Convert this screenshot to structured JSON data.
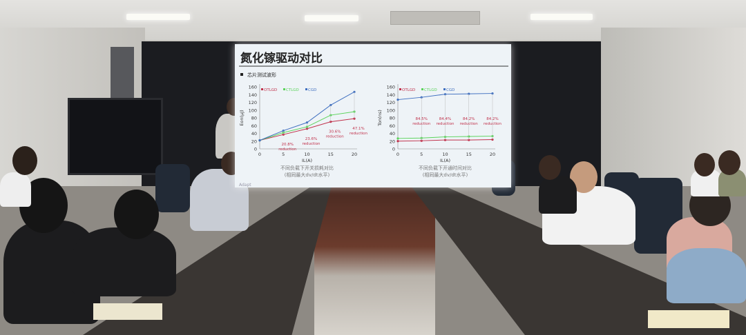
{
  "slide": {
    "title": "氮化镓驱动对比",
    "bullet": "芯片测试波形",
    "footer_left": "Adapt",
    "charts": [
      {
        "type": "line",
        "ylabel": "Eon(μJ)",
        "xlabel": "IL(A)",
        "x": [
          0,
          5,
          10,
          15,
          20
        ],
        "ylim": [
          0,
          160
        ],
        "yticks": [
          0,
          20,
          40,
          60,
          80,
          100,
          120,
          140,
          160
        ],
        "series": [
          {
            "name": "OTLGD",
            "color": "#c0304a",
            "values": [
              22,
              37,
              52,
              70,
              78
            ]
          },
          {
            "name": "CTLGD",
            "color": "#5ad35a",
            "values": [
              22,
              42,
              57,
              87,
              96
            ]
          },
          {
            "name": "CGD",
            "color": "#3f6fc0",
            "values": [
              22,
              47,
              68,
              113,
              147
            ]
          }
        ],
        "annotations": [
          "20.8%",
          "23.6%",
          "30.6%",
          "47.1%"
        ],
        "annotation_suffix": "reduction",
        "caption": "不同负载下开关损耗对比",
        "subcaption": "(相同最大dv/dt水平)"
      },
      {
        "type": "line",
        "ylabel": "Ton(ns)",
        "xlabel": "IL(A)",
        "x": [
          0,
          5,
          10,
          15,
          20
        ],
        "ylim": [
          0,
          160
        ],
        "yticks": [
          0,
          20,
          40,
          60,
          80,
          100,
          120,
          140,
          160
        ],
        "series": [
          {
            "name": "OTLGD",
            "color": "#c0304a",
            "values": [
              20,
              21,
              23,
              23,
              24
            ]
          },
          {
            "name": "CTLGD",
            "color": "#5ad35a",
            "values": [
              27,
              28,
              31,
              32,
              33
            ]
          },
          {
            "name": "CGD",
            "color": "#3f6fc0",
            "values": [
              127,
              133,
              141,
              142,
              143
            ]
          }
        ],
        "annotations": [
          "84.5%",
          "84.4%",
          "84.2%",
          "84.2%"
        ],
        "annotation_suffix": "reduction",
        "caption": "不同负载下开通时间对比",
        "subcaption": "(相同最大dv/dt水平)"
      }
    ]
  }
}
